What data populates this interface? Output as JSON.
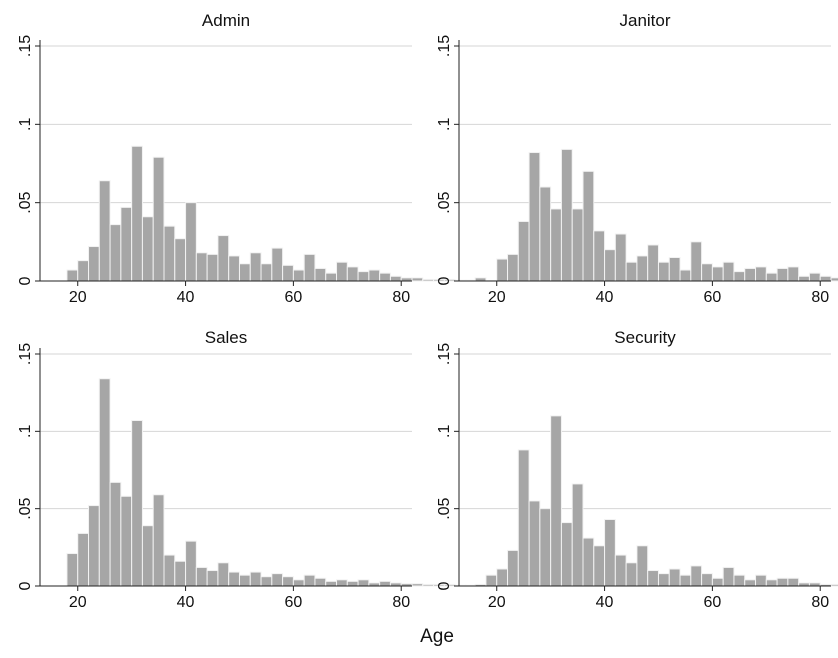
{
  "figure": {
    "xlabel": "Age"
  },
  "colors": {
    "bar_fill": "#a6a6a6",
    "bar_edge": "#f2f2f2",
    "grid": "#d6d6d6",
    "axis": "#222222",
    "background": "#ffffff"
  },
  "chart_data": [
    {
      "type": "bar",
      "title": "Admin",
      "x_start": 16,
      "bin_width": 2,
      "xlim": [
        13,
        82
      ],
      "ylim": [
        0,
        0.15
      ],
      "x_ticks": [
        "20",
        "40",
        "60",
        "80"
      ],
      "y_ticks": [
        "0",
        ".05",
        ".1",
        ".15"
      ],
      "grid": true,
      "values": [
        0,
        0.007,
        0.013,
        0.022,
        0.064,
        0.036,
        0.047,
        0.086,
        0.041,
        0.079,
        0.035,
        0.027,
        0.05,
        0.018,
        0.017,
        0.029,
        0.016,
        0.011,
        0.018,
        0.011,
        0.021,
        0.01,
        0.007,
        0.017,
        0.008,
        0.005,
        0.012,
        0.009,
        0.006,
        0.007,
        0.005,
        0.003,
        0.002,
        0.002,
        0.001,
        0.001,
        0.001,
        0.0005,
        0.0005,
        0.0003,
        0.0003,
        0.0002
      ]
    },
    {
      "type": "bar",
      "title": "Janitor",
      "x_start": 16,
      "bin_width": 2,
      "xlim": [
        13,
        82
      ],
      "ylim": [
        0,
        0.15
      ],
      "x_ticks": [
        "20",
        "40",
        "60",
        "80"
      ],
      "y_ticks": [
        "0",
        ".05",
        ".1",
        ".15"
      ],
      "grid": true,
      "values": [
        0.002,
        0.0,
        0.014,
        0.017,
        0.038,
        0.082,
        0.06,
        0.046,
        0.084,
        0.046,
        0.07,
        0.032,
        0.02,
        0.03,
        0.012,
        0.016,
        0.023,
        0.012,
        0.015,
        0.007,
        0.025,
        0.011,
        0.009,
        0.012,
        0.006,
        0.008,
        0.009,
        0.005,
        0.008,
        0.009,
        0.003,
        0.005,
        0.003,
        0.002,
        0.001,
        0.001,
        0.001,
        0.0005,
        0.0005,
        0.0003,
        0.0003,
        0.0002
      ]
    },
    {
      "type": "bar",
      "title": "Sales",
      "x_start": 16,
      "bin_width": 2,
      "xlim": [
        13,
        82
      ],
      "ylim": [
        0,
        0.15
      ],
      "x_ticks": [
        "20",
        "40",
        "60",
        "80"
      ],
      "y_ticks": [
        "0",
        ".05",
        ".1",
        ".15"
      ],
      "grid": true,
      "values": [
        0,
        0.021,
        0.034,
        0.052,
        0.134,
        0.067,
        0.058,
        0.107,
        0.039,
        0.059,
        0.02,
        0.016,
        0.029,
        0.012,
        0.01,
        0.015,
        0.009,
        0.007,
        0.009,
        0.006,
        0.008,
        0.006,
        0.004,
        0.007,
        0.005,
        0.003,
        0.004,
        0.003,
        0.004,
        0.002,
        0.003,
        0.002,
        0.0015,
        0.0015,
        0.001,
        0.001,
        0.001,
        0.0005,
        0.0005,
        0.0003,
        0.0003,
        0.0002
      ]
    },
    {
      "type": "bar",
      "title": "Security",
      "x_start": 16,
      "bin_width": 2,
      "xlim": [
        13,
        82
      ],
      "ylim": [
        0,
        0.15
      ],
      "x_ticks": [
        "20",
        "40",
        "60",
        "80"
      ],
      "y_ticks": [
        "0",
        ".05",
        ".1",
        ".15"
      ],
      "grid": true,
      "values": [
        0.001,
        0.007,
        0.011,
        0.023,
        0.088,
        0.055,
        0.05,
        0.11,
        0.041,
        0.066,
        0.031,
        0.026,
        0.043,
        0.02,
        0.015,
        0.026,
        0.01,
        0.008,
        0.011,
        0.007,
        0.013,
        0.008,
        0.005,
        0.012,
        0.007,
        0.004,
        0.007,
        0.004,
        0.005,
        0.005,
        0.002,
        0.002,
        0.001,
        0.001,
        0.001,
        0.001,
        0.001,
        0.0005,
        0.0005,
        0.0003,
        0.0003,
        0.0002
      ]
    }
  ]
}
